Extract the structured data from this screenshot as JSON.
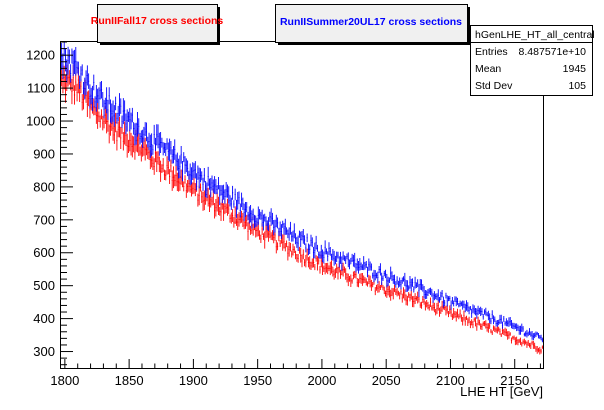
{
  "legend": {
    "red_label": "RunIIFall17 cross sections",
    "blue_label": "RunIISummer20UL17 cross sections"
  },
  "stats": {
    "title": "hGenLHE_HT_all_central",
    "entries_label": "Entries",
    "entries_value": "8.487571e+10",
    "mean_label": "Mean",
    "mean_value": "1945",
    "stddev_label": "Std Dev",
    "stddev_value": "105"
  },
  "colors": {
    "red": "#ff0000",
    "blue": "#0000ff",
    "legend_fill": "#f0f0f0"
  },
  "chart_data": {
    "type": "line",
    "xlabel": "LHE HT [GeV]",
    "ylabel": "",
    "xlim": [
      1797,
      2172
    ],
    "ylim": [
      250,
      1240
    ],
    "x_ticks": [
      1800,
      1850,
      1900,
      1950,
      2000,
      2050,
      2100,
      2150
    ],
    "y_ticks": [
      300,
      400,
      500,
      600,
      700,
      800,
      900,
      1000,
      1100,
      1200
    ],
    "grid": false,
    "bin_width": 1,
    "series": [
      {
        "name": "RunIIFall17 cross sections",
        "color": "#ff0000",
        "x": [
          1800,
          1810,
          1820,
          1830,
          1840,
          1850,
          1860,
          1870,
          1880,
          1890,
          1900,
          1910,
          1920,
          1930,
          1940,
          1950,
          1960,
          1970,
          1980,
          1990,
          2000,
          2010,
          2020,
          2030,
          2040,
          2050,
          2060,
          2070,
          2080,
          2090,
          2100,
          2110,
          2120,
          2130,
          2140,
          2150,
          2160,
          2170
        ],
        "values": [
          1120,
          1100,
          1040,
          1005,
          970,
          945,
          915,
          880,
          850,
          820,
          790,
          765,
          740,
          715,
          690,
          665,
          645,
          625,
          600,
          580,
          560,
          545,
          530,
          515,
          500,
          488,
          475,
          460,
          445,
          430,
          415,
          400,
          385,
          370,
          355,
          340,
          325,
          310
        ]
      },
      {
        "name": "RunIISummer20UL17 cross sections",
        "color": "#0000ff",
        "x": [
          1800,
          1810,
          1820,
          1830,
          1840,
          1850,
          1860,
          1870,
          1880,
          1890,
          1900,
          1910,
          1920,
          1930,
          1940,
          1950,
          1960,
          1970,
          1980,
          1990,
          2000,
          2010,
          2020,
          2030,
          2040,
          2050,
          2060,
          2070,
          2080,
          2090,
          2100,
          2110,
          2120,
          2130,
          2140,
          2150,
          2160,
          2170
        ],
        "values": [
          1190,
          1160,
          1100,
          1060,
          1030,
          1000,
          970,
          935,
          905,
          875,
          845,
          815,
          790,
          765,
          735,
          710,
          690,
          670,
          645,
          625,
          605,
          590,
          575,
          560,
          545,
          530,
          515,
          500,
          485,
          468,
          452,
          435,
          420,
          405,
          390,
          375,
          358,
          340
        ]
      }
    ]
  }
}
